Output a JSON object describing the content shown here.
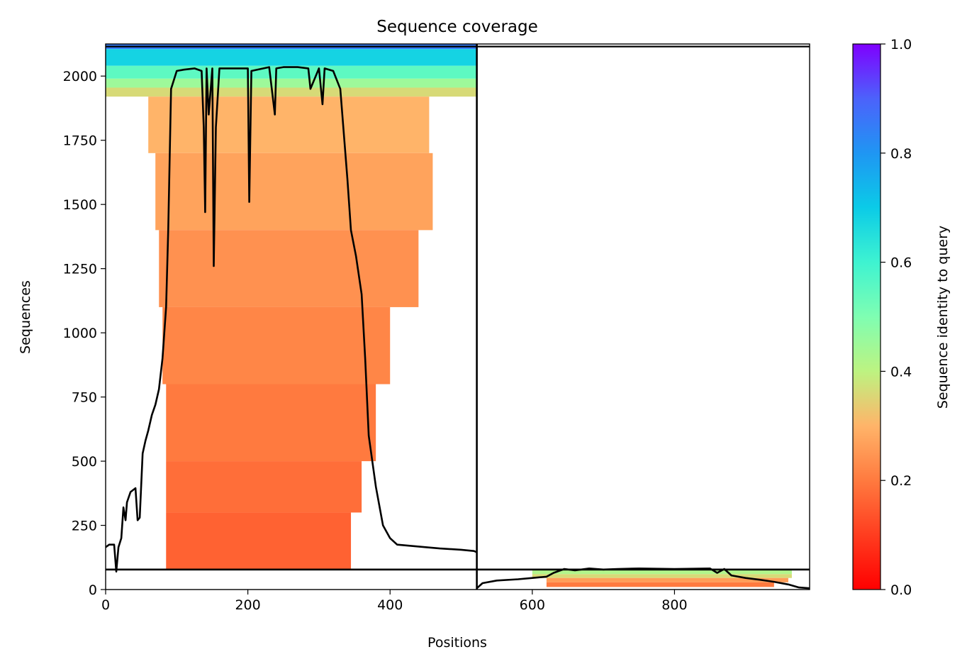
{
  "chart_data": {
    "type": "heatmap",
    "title": "Sequence coverage",
    "xlabel": "Positions",
    "ylabel": "Sequences",
    "xlim": [
      0,
      990
    ],
    "ylim": [
      0,
      2125
    ],
    "xticks": [
      0,
      200,
      400,
      600,
      800
    ],
    "yticks": [
      0,
      250,
      500,
      750,
      1000,
      1250,
      1500,
      1750,
      2000
    ],
    "xtick_labels": [
      "0",
      "200",
      "400",
      "600",
      "800"
    ],
    "ytick_labels": [
      "0",
      "250",
      "500",
      "750",
      "1000",
      "1250",
      "1500",
      "1750",
      "2000"
    ],
    "chain_boundary_x": 522,
    "separator_y": 78,
    "colorbar": {
      "label": "Sequence identity to query",
      "range": [
        0,
        1
      ],
      "colormap": "rainbow_r",
      "ticks": [
        0.0,
        0.2,
        0.4,
        0.6,
        0.8,
        1.0
      ],
      "tick_labels": [
        "0.0",
        "0.2",
        "0.4",
        "0.6",
        "0.8",
        "1.0"
      ],
      "stops": [
        {
          "v": 0.0,
          "color": "#ff0000"
        },
        {
          "v": 0.2,
          "color": "#ff7a3f"
        },
        {
          "v": 0.3,
          "color": "#ffb469"
        },
        {
          "v": 0.4,
          "color": "#bdf381"
        },
        {
          "v": 0.5,
          "color": "#7ffeb2"
        },
        {
          "v": 0.6,
          "color": "#3ef3d1"
        },
        {
          "v": 0.7,
          "color": "#0bcbe7"
        },
        {
          "v": 0.8,
          "color": "#1f96f3"
        },
        {
          "v": 0.9,
          "color": "#4c62fb"
        },
        {
          "v": 1.0,
          "color": "#7f00ff"
        }
      ]
    },
    "coverage_bands": [
      {
        "chain": "A",
        "y0": 2105,
        "y1": 2125,
        "x0": 0,
        "x1": 522,
        "identity": 0.85
      },
      {
        "chain": "A",
        "y0": 2040,
        "y1": 2105,
        "x0": 0,
        "x1": 522,
        "identity": 0.68
      },
      {
        "chain": "A",
        "y0": 1990,
        "y1": 2040,
        "x0": 0,
        "x1": 522,
        "identity": 0.55
      },
      {
        "chain": "A",
        "y0": 1955,
        "y1": 1990,
        "x0": 0,
        "x1": 522,
        "identity": 0.45
      },
      {
        "chain": "A",
        "y0": 1920,
        "y1": 1955,
        "x0": 0,
        "x1": 522,
        "identity": 0.36
      },
      {
        "chain": "A",
        "y0": 1700,
        "y1": 1920,
        "x0": 60,
        "x1": 455,
        "identity": 0.3
      },
      {
        "chain": "A",
        "y0": 1400,
        "y1": 1700,
        "x0": 70,
        "x1": 460,
        "identity": 0.27
      },
      {
        "chain": "A",
        "y0": 1100,
        "y1": 1400,
        "x0": 75,
        "x1": 440,
        "identity": 0.24
      },
      {
        "chain": "A",
        "y0": 800,
        "y1": 1100,
        "x0": 80,
        "x1": 400,
        "identity": 0.22
      },
      {
        "chain": "A",
        "y0": 500,
        "y1": 800,
        "x0": 85,
        "x1": 380,
        "identity": 0.2
      },
      {
        "chain": "A",
        "y0": 300,
        "y1": 500,
        "x0": 85,
        "x1": 360,
        "identity": 0.18
      },
      {
        "chain": "A",
        "y0": 80,
        "y1": 300,
        "x0": 85,
        "x1": 345,
        "identity": 0.16
      },
      {
        "chain": "B",
        "y0": 60,
        "y1": 75,
        "x0": 600,
        "x1": 965,
        "identity": 0.42
      },
      {
        "chain": "B",
        "y0": 45,
        "y1": 60,
        "x0": 600,
        "x1": 965,
        "identity": 0.36
      },
      {
        "chain": "B",
        "y0": 28,
        "y1": 45,
        "x0": 620,
        "x1": 960,
        "identity": 0.26
      },
      {
        "chain": "B",
        "y0": 10,
        "y1": 28,
        "x0": 620,
        "x1": 940,
        "identity": 0.2
      }
    ],
    "coverage_line_chain_A": {
      "x": [
        0,
        5,
        12,
        15,
        18,
        22,
        25,
        28,
        30,
        35,
        42,
        45,
        48,
        52,
        56,
        60,
        65,
        70,
        75,
        80,
        85,
        88,
        92,
        100,
        110,
        125,
        135,
        138,
        140,
        142,
        145,
        150,
        152,
        155,
        160,
        175,
        200,
        202,
        205,
        230,
        238,
        240,
        250,
        270,
        285,
        288,
        300,
        305,
        308,
        320,
        330,
        340,
        345,
        352,
        360,
        365,
        370,
        380,
        390,
        400,
        410,
        450,
        470,
        500,
        518,
        522
      ],
      "y": [
        165,
        175,
        175,
        70,
        165,
        200,
        320,
        270,
        340,
        380,
        395,
        270,
        280,
        530,
        580,
        620,
        680,
        720,
        780,
        900,
        1100,
        1400,
        1950,
        2020,
        2025,
        2030,
        2020,
        1800,
        1470,
        2030,
        1850,
        2030,
        1260,
        1800,
        2030,
        2030,
        2030,
        1510,
        2020,
        2035,
        1850,
        2030,
        2035,
        2035,
        2030,
        1950,
        2030,
        1890,
        2030,
        2020,
        1950,
        1600,
        1400,
        1300,
        1150,
        900,
        600,
        400,
        250,
        200,
        175,
        165,
        160,
        155,
        150,
        145
      ]
    },
    "coverage_line_chain_B": {
      "x": [
        522,
        530,
        550,
        580,
        600,
        620,
        630,
        645,
        660,
        680,
        700,
        720,
        750,
        800,
        850,
        860,
        870,
        880,
        900,
        920,
        940,
        960,
        975,
        990
      ],
      "y": [
        5,
        25,
        35,
        40,
        45,
        50,
        65,
        80,
        75,
        82,
        78,
        80,
        82,
        80,
        82,
        65,
        80,
        55,
        45,
        38,
        30,
        20,
        8,
        5
      ]
    }
  }
}
